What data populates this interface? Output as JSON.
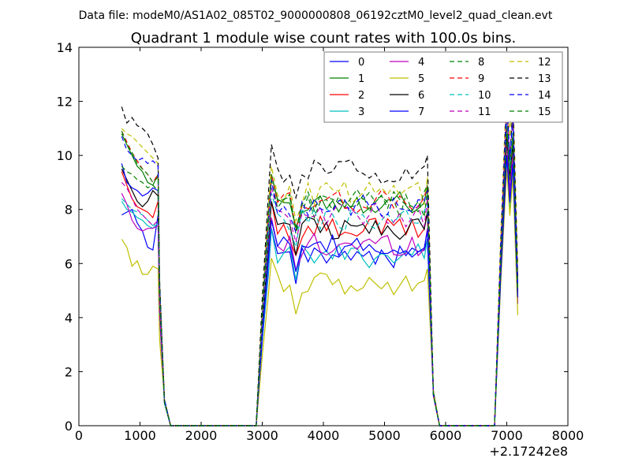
{
  "chart_data": {
    "type": "line",
    "suptitle": "Data file: modeM0/AS1A02_085T02_9000000808_06192cztM0_level2_quad_clean.evt",
    "title": "Quadrant 1 module wise count rates with 100.0s bins.",
    "xlabel": "",
    "ylabel": "",
    "x_offset_label": "+2.17242e8",
    "xlim": [
      0,
      8000
    ],
    "ylim": [
      0,
      14
    ],
    "xticks": [
      0,
      1000,
      2000,
      3000,
      4000,
      5000,
      6000,
      7000,
      8000
    ],
    "yticks": [
      0,
      2,
      4,
      6,
      8,
      10,
      12,
      14
    ],
    "grid": false,
    "legend_position": "top-right",
    "legend_columns": 4,
    "series": [
      {
        "name": "0",
        "color": "#0000ff",
        "dash": "solid",
        "base": [
          7.8,
          7.9,
          8.0,
          7.5,
          7.2,
          6.6,
          6.5,
          7.8
        ],
        "level": 6.3,
        "end": 10.6
      },
      {
        "name": "1",
        "color": "#008000",
        "dash": "solid",
        "base": [
          10.8,
          10.4,
          10.0,
          9.6,
          9.4,
          9.0,
          8.9,
          9.3
        ],
        "level": 8.3,
        "end": 11.1
      },
      {
        "name": "2",
        "color": "#ff0000",
        "dash": "solid",
        "base": [
          9.4,
          8.9,
          8.4,
          8.1,
          8.0,
          7.9,
          7.7,
          8.3
        ],
        "level": 7.3,
        "end": 10.9
      },
      {
        "name": "3",
        "color": "#00bfbf",
        "dash": "solid",
        "base": [
          8.3,
          8.0,
          7.9,
          7.7,
          7.6,
          7.4,
          7.3,
          7.5
        ],
        "level": 6.3,
        "end": 9.9
      },
      {
        "name": "4",
        "color": "#bf00bf",
        "dash": "solid",
        "base": [
          8.6,
          8.2,
          7.6,
          7.3,
          7.2,
          7.3,
          7.3,
          7.4
        ],
        "level": 6.7,
        "end": 10.5
      },
      {
        "name": "5",
        "color": "#bfbf00",
        "dash": "solid",
        "base": [
          6.9,
          6.6,
          5.9,
          6.1,
          5.6,
          5.6,
          5.9,
          5.8
        ],
        "level": 5.2,
        "end": 9.5
      },
      {
        "name": "6",
        "color": "#000000",
        "dash": "solid",
        "base": [
          9.5,
          9.1,
          8.7,
          8.3,
          8.1,
          8.3,
          8.7,
          8.5
        ],
        "level": 7.3,
        "end": 10.8
      },
      {
        "name": "7",
        "color": "#0000ff",
        "dash": "solid",
        "base": [
          9.7,
          9.0,
          8.8,
          8.7,
          8.5,
          8.6,
          8.8,
          8.7
        ],
        "level": 6.6,
        "end": 10.0
      },
      {
        "name": "8",
        "color": "#008000",
        "dash": "dashed",
        "base": [
          9.6,
          9.4,
          9.3,
          9.1,
          9.0,
          8.8,
          8.9,
          8.7
        ],
        "level": 8.1,
        "end": 11.2
      },
      {
        "name": "9",
        "color": "#ff0000",
        "dash": "dashed",
        "base": [
          10.9,
          10.5,
          10.1,
          9.8,
          9.5,
          9.3,
          9.0,
          9.3
        ],
        "level": 8.3,
        "end": 11.6
      },
      {
        "name": "10",
        "color": "#00bfbf",
        "dash": "dashed",
        "base": [
          8.4,
          8.2,
          8.0,
          7.9,
          7.8,
          7.6,
          7.4,
          7.5
        ],
        "level": 7.6,
        "end": 11.4
      },
      {
        "name": "11",
        "color": "#bf00bf",
        "dash": "dashed",
        "base": [
          9.0,
          8.8,
          8.4,
          8.0,
          7.8,
          7.6,
          7.4,
          7.6
        ],
        "level": 7.8,
        "end": 11.8
      },
      {
        "name": "12",
        "color": "#bfbf00",
        "dash": "dashed",
        "base": [
          11.0,
          10.8,
          10.7,
          10.5,
          10.3,
          10.1,
          9.9,
          9.7
        ],
        "level": 8.6,
        "end": 12.8
      },
      {
        "name": "13",
        "color": "#000000",
        "dash": "dashed",
        "base": [
          11.8,
          11.2,
          11.4,
          11.1,
          11.0,
          10.8,
          10.4,
          9.9
        ],
        "level": 9.4,
        "end": 12.2
      },
      {
        "name": "14",
        "color": "#0000ff",
        "dash": "dashed",
        "base": [
          10.7,
          10.2,
          10.0,
          9.8,
          9.9,
          9.7,
          9.8,
          9.6
        ],
        "level": 8.1,
        "end": 11.9
      },
      {
        "name": "15",
        "color": "#008000",
        "dash": "dashed",
        "base": [
          10.9,
          10.4,
          10.1,
          9.7,
          9.5,
          9.3,
          9.0,
          9.2
        ],
        "level": 8.3,
        "end": 11.0
      }
    ]
  }
}
